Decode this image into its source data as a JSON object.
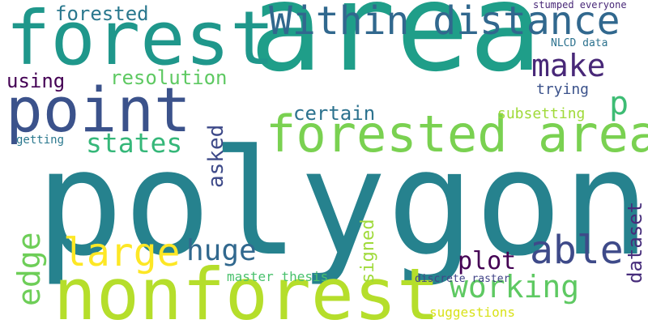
{
  "words": [
    {
      "text": "polygon",
      "color": "#26828e"
    },
    {
      "text": "area",
      "color": "#1f9e89"
    },
    {
      "text": "nonforest",
      "color": "#b5de2b"
    },
    {
      "text": "forest",
      "color": "#1f978b"
    },
    {
      "text": "point",
      "color": "#3b528b"
    },
    {
      "text": "forested area",
      "color": "#7ad151"
    },
    {
      "text": "Within distance",
      "color": "#31688e"
    },
    {
      "text": "large",
      "color": "#fde725"
    },
    {
      "text": "able",
      "color": "#3e4a89"
    },
    {
      "text": "working",
      "color": "#5ec962"
    },
    {
      "text": "make",
      "color": "#482878"
    },
    {
      "text": "edge",
      "color": "#6ece58"
    },
    {
      "text": "huge",
      "color": "#31688e"
    },
    {
      "text": "states",
      "color": "#35b779"
    },
    {
      "text": "forested",
      "color": "#2a788e"
    },
    {
      "text": "resolution",
      "color": "#5ec962"
    },
    {
      "text": "using",
      "color": "#440154"
    },
    {
      "text": "certain",
      "color": "#2c728e"
    },
    {
      "text": "plot",
      "color": "#440154"
    },
    {
      "text": "asked",
      "color": "#3e4a89"
    },
    {
      "text": "p",
      "color": "#3dbc74"
    },
    {
      "text": "dataset",
      "color": "#472d7b"
    },
    {
      "text": "signed",
      "color": "#9fda3a"
    },
    {
      "text": "trying",
      "color": "#3b528b"
    },
    {
      "text": "subsetting",
      "color": "#a0da39"
    },
    {
      "text": "NLCD data",
      "color": "#2c728e"
    },
    {
      "text": "stumped everyone",
      "color": "#482878"
    },
    {
      "text": "getting",
      "color": "#2a788e"
    },
    {
      "text": "master thesis",
      "color": "#4ac16d"
    },
    {
      "text": "discrete raster",
      "color": "#414487"
    },
    {
      "text": "suggestions",
      "color": "#d8e219"
    }
  ]
}
